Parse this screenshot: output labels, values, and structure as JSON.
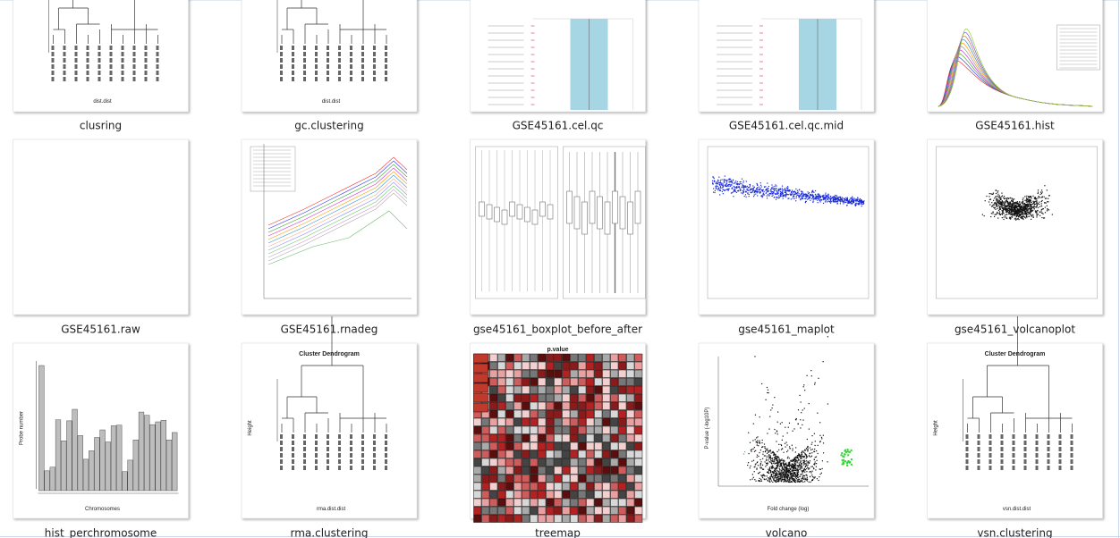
{
  "files": [
    {
      "name": "clusring",
      "thumb_xlabel": "dist.dist"
    },
    {
      "name": "gc.clustering",
      "thumb_xlabel": "dist.dist"
    },
    {
      "name": "GSE45161.cel.qc"
    },
    {
      "name": "GSE45161.cel.qc.mid"
    },
    {
      "name": "GSE45161.hist"
    },
    {
      "name": "GSE45161.raw"
    },
    {
      "name": "GSE45161.rnadeg"
    },
    {
      "name": "gse45161_boxplot_before_after"
    },
    {
      "name": "gse45161_maplot"
    },
    {
      "name": "gse45161_volcanoplot"
    },
    {
      "name": "hist_perchromosome",
      "thumb_xlabel": "Chromosomes",
      "thumb_ylabel": "Probe number"
    },
    {
      "name": "rma.clustering",
      "thumb_title": "Cluster Dendrogram",
      "thumb_xlabel": "rma.dist.dist",
      "thumb_ylabel": "Height"
    },
    {
      "name": "treemap",
      "thumb_title": "p.value"
    },
    {
      "name": "volcano",
      "thumb_xlabel": "Fold change (log)",
      "thumb_ylabel": "P-value (-log10P)"
    },
    {
      "name": "vsn.clustering",
      "thumb_title": "Cluster Dendrogram",
      "thumb_xlabel": "vsn.dist.dist",
      "thumb_ylabel": "Height"
    }
  ]
}
